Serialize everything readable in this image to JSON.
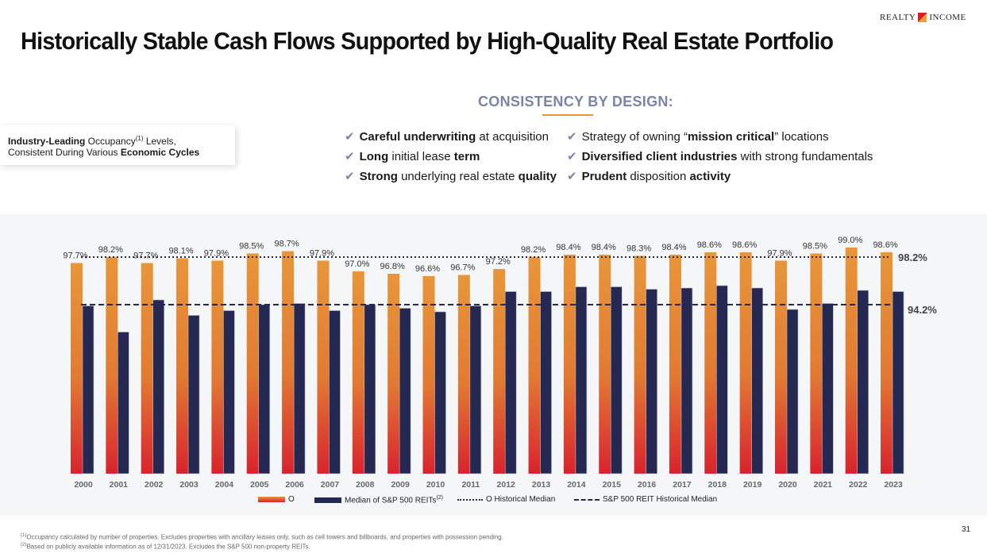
{
  "header": {
    "title": "Historically Stable Cash Flows Supported by High-Quality Real Estate Portfolio",
    "logo_text": [
      "REALTY",
      "INCOME"
    ]
  },
  "subheading": "CONSISTENCY BY DESIGN:",
  "callout": {
    "bold1": "Industry-Leading",
    "text1": " Occupancy",
    "sup": "(1)",
    "text2": " Levels,",
    "text3": "Consistent During Various ",
    "bold2": "Economic Cycles"
  },
  "icons": {
    "bullet": "checkmark-icon"
  },
  "bullets_left": [
    [
      {
        "t": "Careful underwriting",
        "b": true
      },
      {
        "t": " at acquisition",
        "b": false
      }
    ],
    [
      {
        "t": "Long",
        "b": true
      },
      {
        "t": " initial lease ",
        "b": false
      },
      {
        "t": "term",
        "b": true
      }
    ],
    [
      {
        "t": "Strong",
        "b": true
      },
      {
        "t": " underlying real estate ",
        "b": false
      },
      {
        "t": "quality",
        "b": true
      }
    ]
  ],
  "bullets_right": [
    [
      {
        "t": "Strategy of owning “",
        "b": false
      },
      {
        "t": "mission critical",
        "b": true
      },
      {
        "t": "” locations",
        "b": false
      }
    ],
    [
      {
        "t": "Diversified client industries",
        "b": true
      },
      {
        "t": " with strong fundamentals",
        "b": false
      }
    ],
    [
      {
        "t": "Prudent",
        "b": true
      },
      {
        "t": " disposition ",
        "b": false
      },
      {
        "t": "activity",
        "b": true
      }
    ]
  ],
  "chart_data": {
    "type": "bar",
    "categories": [
      "2000",
      "2001",
      "2002",
      "2003",
      "2004",
      "2005",
      "2006",
      "2007",
      "2008",
      "2009",
      "2010",
      "2011",
      "2012",
      "2013",
      "2014",
      "2015",
      "2016",
      "2017",
      "2018",
      "2019",
      "2020",
      "2021",
      "2022",
      "2023"
    ],
    "series": [
      {
        "name": "O",
        "color": "#e8963a",
        "color_bottom": "#d9232e",
        "values": [
          97.7,
          98.2,
          97.7,
          98.1,
          97.9,
          98.5,
          98.7,
          97.9,
          97.0,
          96.8,
          96.6,
          96.7,
          97.2,
          98.2,
          98.4,
          98.4,
          98.3,
          98.4,
          98.6,
          98.6,
          97.9,
          98.5,
          99.0,
          98.6
        ],
        "labels": [
          "97.7%",
          "98.2%",
          "97.7%",
          "98.1%",
          "97.9%",
          "98.5%",
          "98.7%",
          "97.9%",
          "97.0%",
          "96.8%",
          "96.6%",
          "96.7%",
          "97.2%",
          "98.2%",
          "98.4%",
          "98.4%",
          "98.3%",
          "98.4%",
          "98.6%",
          "98.6%",
          "97.9%",
          "98.5%",
          "99.0%",
          "98.6%"
        ]
      },
      {
        "name": "Median of S&P 500 REITs",
        "name_sup": "(2)",
        "color": "#252850",
        "values": [
          94.1,
          91.9,
          94.6,
          93.3,
          93.7,
          94.2,
          94.3,
          93.7,
          94.2,
          93.9,
          93.6,
          94.1,
          95.3,
          95.3,
          95.7,
          95.7,
          95.5,
          95.6,
          95.8,
          95.6,
          93.8,
          94.3,
          95.4,
          95.3
        ]
      }
    ],
    "reference_lines": [
      {
        "name": "O Historical Median",
        "value": 98.2,
        "label": "98.2%",
        "style": "dotted"
      },
      {
        "name": "S&P 500 REIT Historical Median",
        "value": 94.2,
        "label": "94.2%",
        "style": "dashed"
      }
    ],
    "ylim": [
      80,
      100
    ],
    "y_axis_visible": false,
    "grid": false,
    "legend": "bottom"
  },
  "footnotes": [
    {
      "sup": "(1)",
      "text": "Occupancy calculated by number of properties. Excludes properties with ancillary leases only, such as cell towers and billboards, and properties with possession pending."
    },
    {
      "sup": "(2)",
      "text": "Based on publicly available information as of 12/31/2023. Excludes the S&P 500 non-property REITs."
    }
  ],
  "page_number": "31"
}
